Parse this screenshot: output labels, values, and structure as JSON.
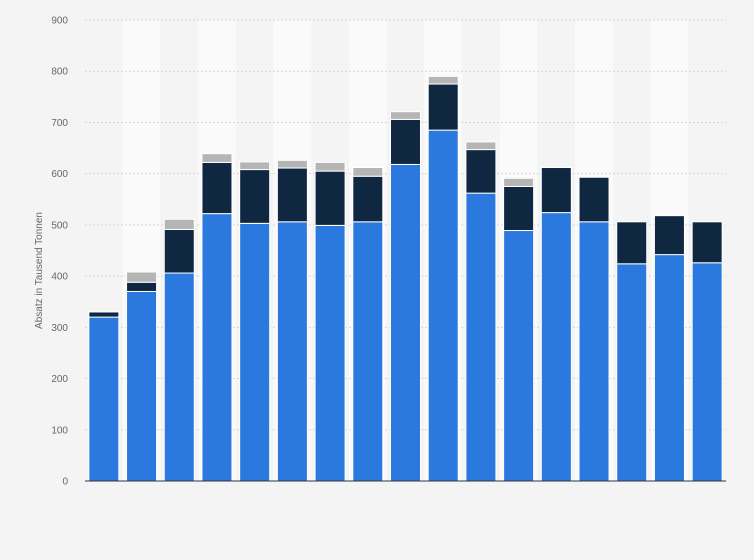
{
  "chart_data": {
    "type": "bar",
    "stacked": true,
    "ylabel": "Absatz in Tausend Tonnen",
    "xlabel": "",
    "ylim": [
      0,
      900
    ],
    "yticks": [
      0,
      100,
      200,
      300,
      400,
      500,
      600,
      700,
      800,
      900
    ],
    "grid": true,
    "legend": "none",
    "categories": [
      "",
      "",
      "",
      "",
      "",
      "",
      "",
      "",
      "",
      "",
      "",
      "",
      "",
      "",
      "",
      "",
      ""
    ],
    "series": [
      {
        "color": "#2b78de",
        "values": [
          320,
          370,
          406,
          522,
          503,
          506,
          499,
          506,
          618,
          685,
          562,
          489,
          524,
          506,
          424,
          442,
          426
        ]
      },
      {
        "color": "#0f2740",
        "values": [
          10,
          18,
          85,
          100,
          105,
          105,
          106,
          89,
          88,
          90,
          85,
          86,
          88,
          87,
          82,
          76,
          80
        ]
      },
      {
        "color": "#b5b5b5",
        "values": [
          0,
          20,
          20,
          17,
          15,
          15,
          17,
          17,
          15,
          15,
          15,
          16,
          0,
          0,
          0,
          0,
          0
        ]
      }
    ]
  }
}
